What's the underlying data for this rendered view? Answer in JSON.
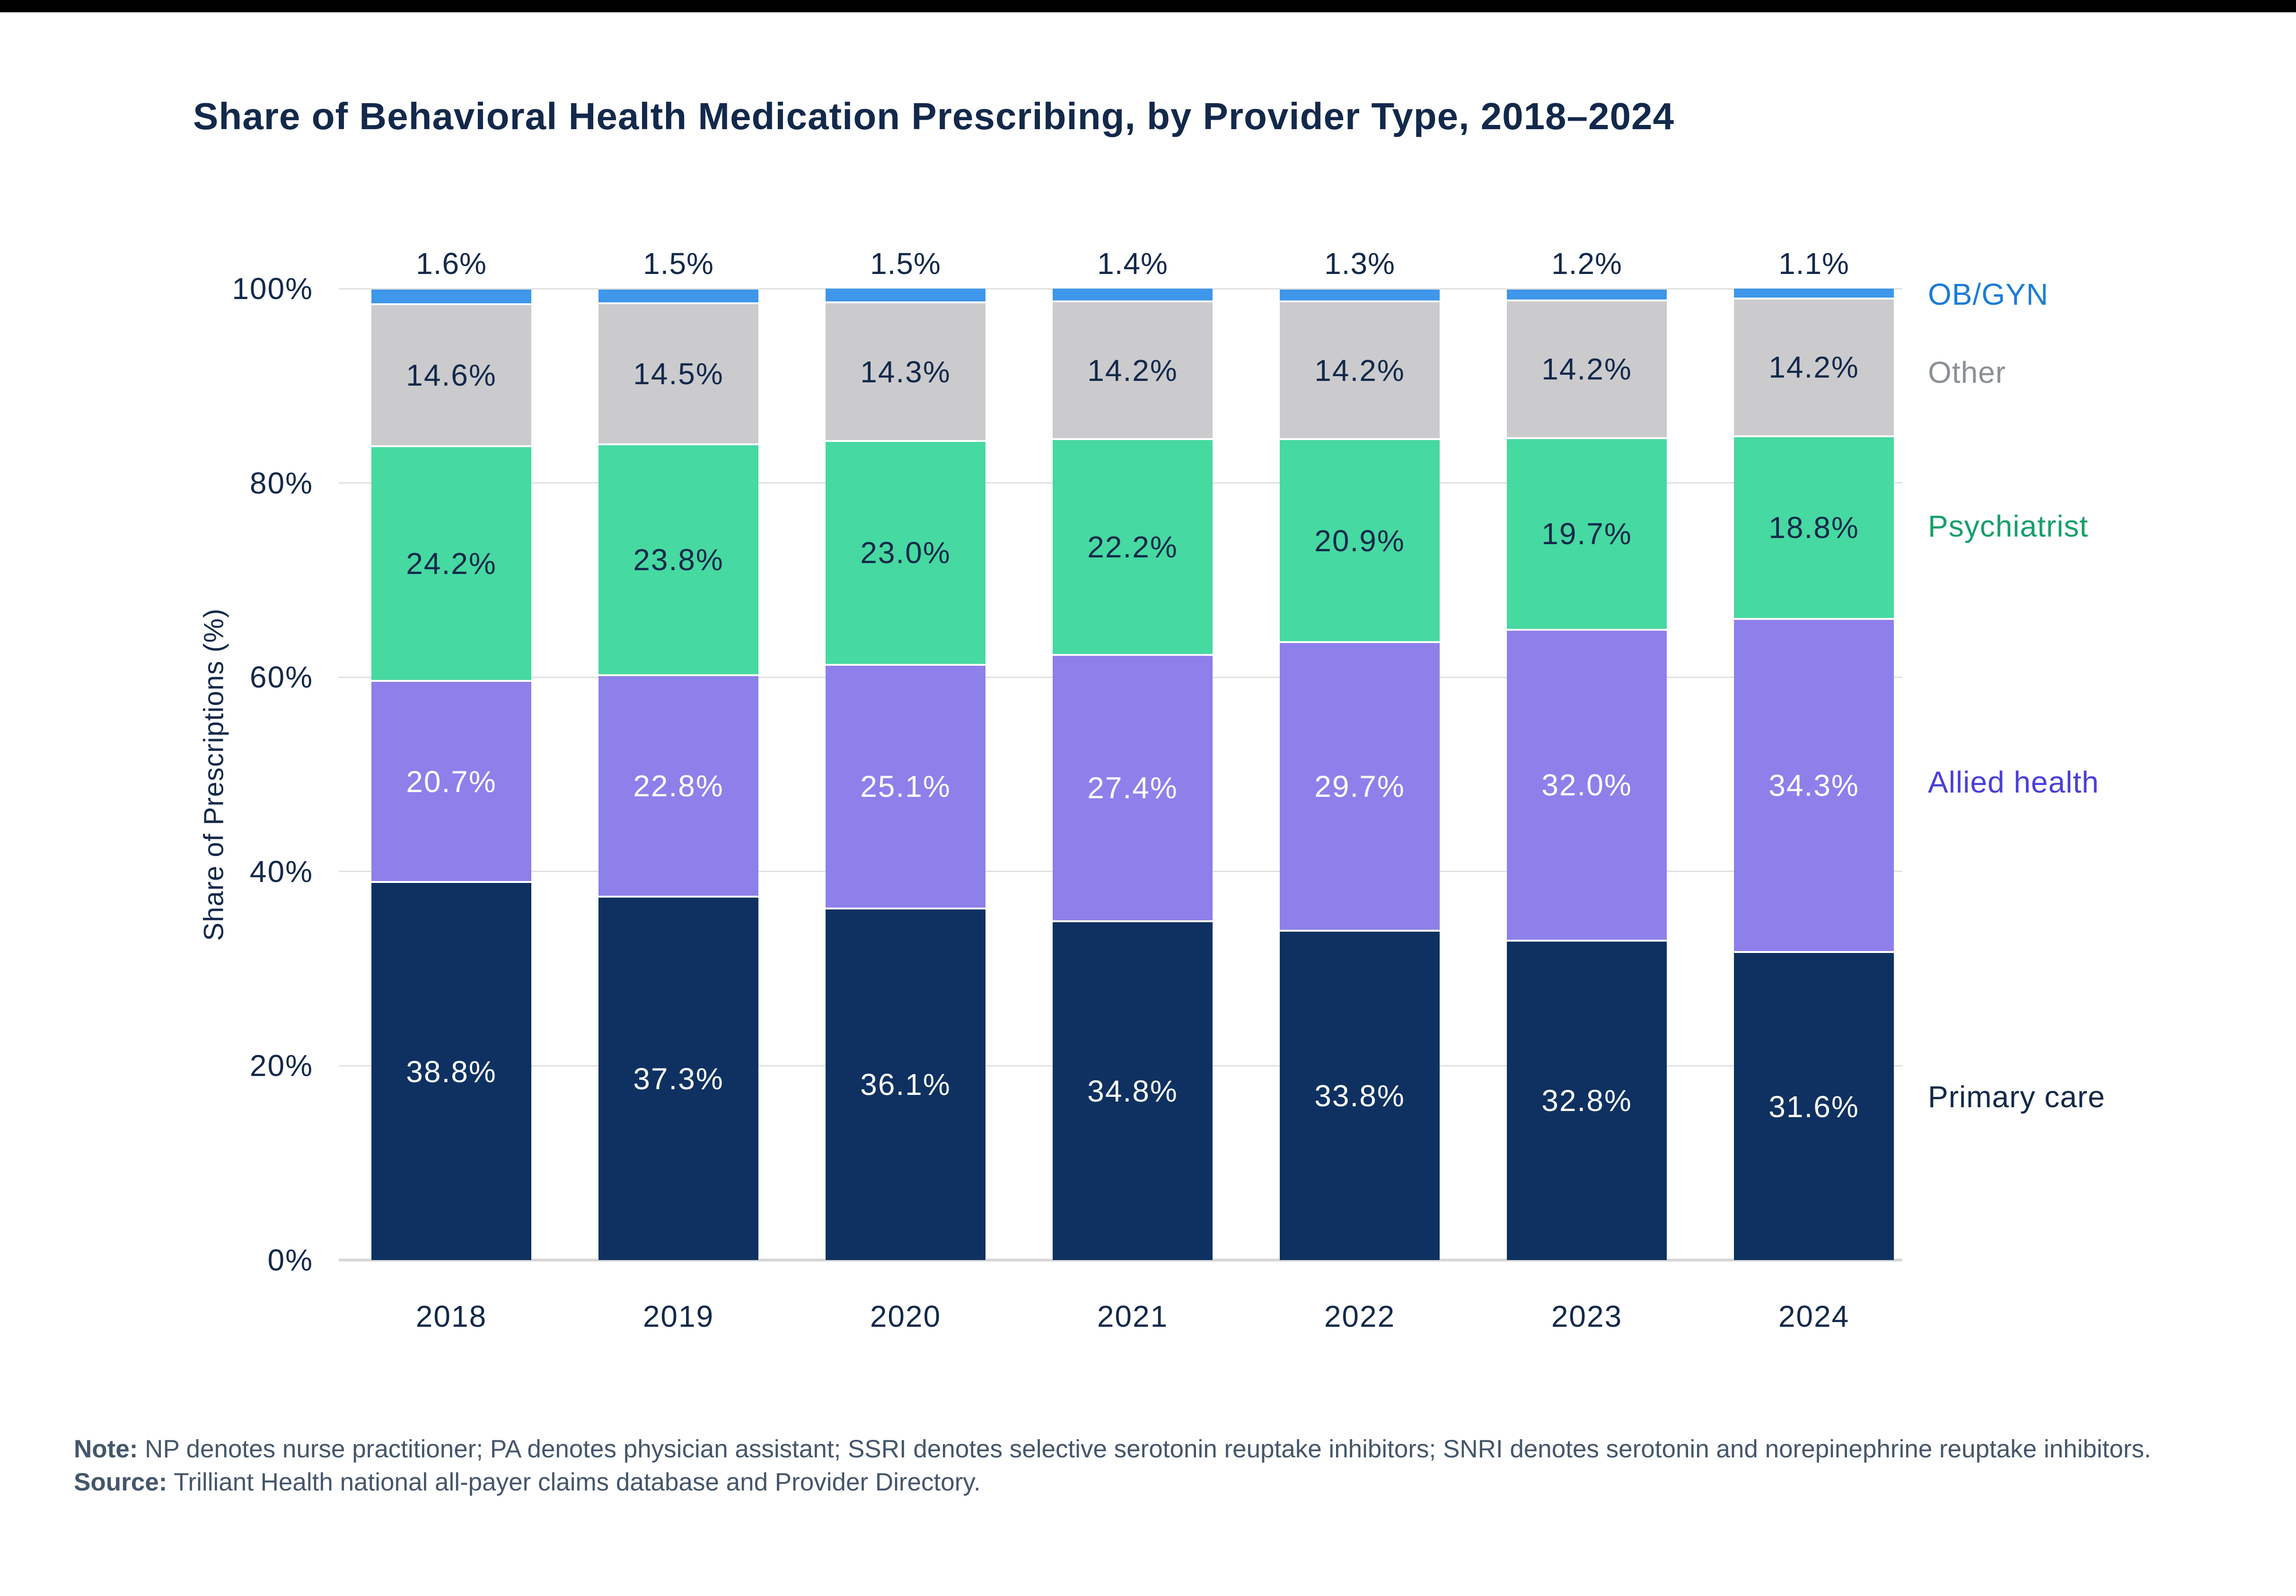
{
  "page": {
    "background": "#ffffff",
    "top_bar_color": "#000000"
  },
  "title": "Share of Behavioral Health Medication Prescribing, by Provider Type, 2018–2024",
  "y_axis": {
    "title": "Share of Prescriptions (%)",
    "ticks": [
      {
        "label": "100%",
        "value": 100
      },
      {
        "label": "80%",
        "value": 80
      },
      {
        "label": "60%",
        "value": 60
      },
      {
        "label": "40%",
        "value": 40
      },
      {
        "label": "20%",
        "value": 20
      },
      {
        "label": "0%",
        "value": 0
      }
    ]
  },
  "legend": [
    {
      "label": "OB/GYN",
      "color": "#1C7CD7"
    },
    {
      "label": "Other",
      "color": "#8A9197"
    },
    {
      "label": "Psychiatrist",
      "color": "#17A069"
    },
    {
      "label": "Allied health",
      "color": "#4B3FD9"
    },
    {
      "label": "Primary care",
      "color": "#13294B"
    }
  ],
  "chart_data": {
    "type": "bar",
    "stacked": true,
    "title": "Share of Behavioral Health Medication Prescribing, by Provider Type, 2018–2024",
    "xlabel": "",
    "ylabel": "Share of Prescriptions (%)",
    "ylim": [
      0,
      100
    ],
    "grid": true,
    "legend_position": "right",
    "categories": [
      "2018",
      "2019",
      "2020",
      "2021",
      "2022",
      "2023",
      "2024"
    ],
    "series": [
      {
        "name": "Primary care",
        "color": "#0E3161",
        "label_color": "#ffffff",
        "label_position": "inside",
        "values": [
          38.8,
          37.3,
          36.1,
          34.8,
          33.8,
          32.8,
          31.6
        ]
      },
      {
        "name": "Allied health",
        "color": "#8D80EA",
        "label_color": "#ffffff",
        "label_position": "inside",
        "values": [
          20.7,
          22.8,
          25.1,
          27.4,
          29.7,
          32.0,
          34.3
        ]
      },
      {
        "name": "Psychiatrist",
        "color": "#46D9A1",
        "label_color": "#13294B",
        "label_position": "inside",
        "values": [
          24.2,
          23.8,
          23.0,
          22.2,
          20.9,
          19.7,
          18.8
        ]
      },
      {
        "name": "Other",
        "color": "#CBCBCD",
        "label_color": "#13294B",
        "label_position": "inside",
        "values": [
          14.6,
          14.5,
          14.3,
          14.2,
          14.2,
          14.2,
          14.2
        ]
      },
      {
        "name": "OB/GYN",
        "color": "#3E97EA",
        "label_color": "#13294B",
        "label_position": "above",
        "values": [
          1.6,
          1.5,
          1.5,
          1.4,
          1.3,
          1.2,
          1.1
        ]
      }
    ],
    "value_format": "percent_one_decimal"
  },
  "footnote": {
    "note_label": "Note:",
    "note_text": " NP denotes nurse practitioner; PA denotes physician assistant; SSRI denotes selective serotonin reuptake inhibitors; SNRI denotes serotonin and norepinephrine reuptake inhibitors.",
    "source_label": "Source:",
    "source_text": " Trilliant Health national all-payer claims database and Provider Directory."
  }
}
